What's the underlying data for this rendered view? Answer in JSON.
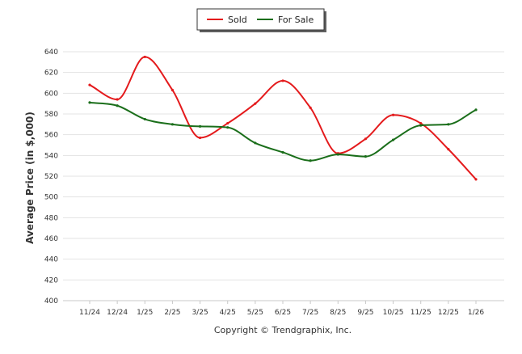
{
  "legend": {
    "items": [
      {
        "label": "Sold",
        "color": "#e41a1c"
      },
      {
        "label": "For Sale",
        "color": "#1a6e1a"
      }
    ]
  },
  "footer": {
    "copyright": "Copyright © Trendgraphix, Inc."
  },
  "chart_data": {
    "type": "line",
    "title": "",
    "xlabel": "",
    "ylabel": "Average Price (in $,000)",
    "ylim": [
      400,
      640
    ],
    "yticks": [
      400,
      420,
      440,
      460,
      480,
      500,
      520,
      540,
      560,
      580,
      600,
      620,
      640
    ],
    "grid": true,
    "legend_position": "top-center",
    "categories": [
      "11/24",
      "12/24",
      "1/25",
      "2/25",
      "3/25",
      "4/25",
      "5/25",
      "6/25",
      "7/25",
      "8/25",
      "9/25",
      "10/25",
      "11/25",
      "12/25",
      "1/26"
    ],
    "series": [
      {
        "name": "Sold",
        "color": "#e41a1c",
        "values": [
          608,
          594,
          635,
          603,
          557,
          571,
          590,
          612,
          586,
          542,
          556,
          579,
          571,
          546,
          517
        ]
      },
      {
        "name": "For Sale",
        "color": "#1a6e1a",
        "values": [
          591,
          588,
          575,
          570,
          568,
          567,
          552,
          543,
          535,
          541,
          539,
          555,
          569,
          570,
          584
        ]
      }
    ]
  }
}
